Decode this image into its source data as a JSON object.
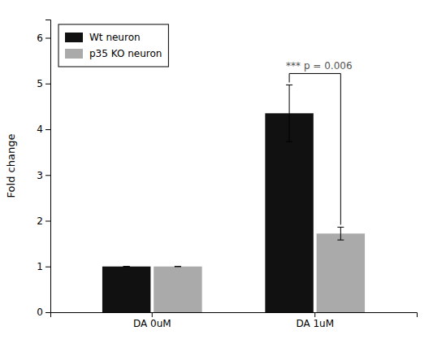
{
  "chart_data": {
    "type": "bar",
    "categories": [
      "DA 0uM",
      "DA 1uM"
    ],
    "series": [
      {
        "name": "Wt neuron",
        "color": "#111111",
        "values": [
          1.0,
          4.35
        ],
        "errors": [
          0.0,
          0.62
        ]
      },
      {
        "name": "p35 KO neuron",
        "color": "#aaaaaa",
        "values": [
          1.0,
          1.72
        ],
        "errors": [
          0.0,
          0.14
        ]
      }
    ],
    "y_label": "Fold change",
    "ylim": [
      0,
      6.4
    ],
    "yticks": [
      0,
      1,
      2,
      3,
      4,
      5,
      6
    ],
    "grid": false,
    "legend": "upper left",
    "annotations": [
      {
        "text": "*** p = 0.006",
        "category": "DA 1uM"
      }
    ]
  }
}
